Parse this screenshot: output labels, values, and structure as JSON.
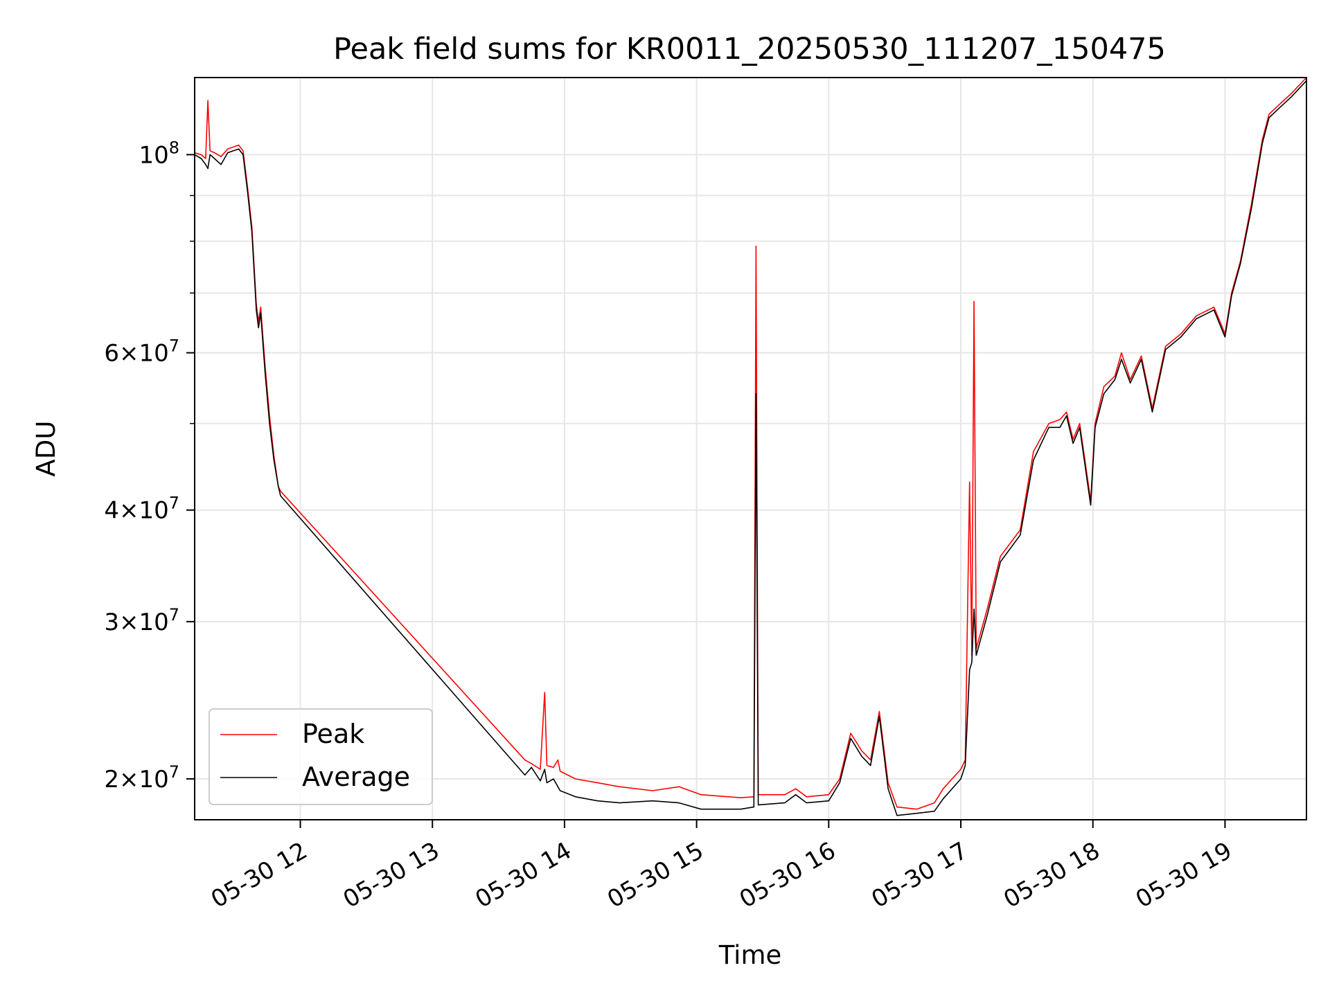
{
  "chart_data": {
    "type": "line",
    "title": "Peak field sums for KR0011_20250530_111207_150475",
    "xlabel": "Time",
    "ylabel": "ADU",
    "y_scale": "log",
    "xlim": [
      "2025-05-30 11:12",
      "2025-05-30 19:37"
    ],
    "ylim": [
      18000000,
      122000000
    ],
    "grid": true,
    "legend_position": "lower-left",
    "x_ticks": [
      "05-30 12",
      "05-30 13",
      "05-30 14",
      "05-30 15",
      "05-30 16",
      "05-30 17",
      "05-30 18",
      "05-30 19"
    ],
    "y_ticks": [
      {
        "value": 20000000,
        "mantissa": "2",
        "exponent": "7"
      },
      {
        "value": 30000000,
        "mantissa": "3",
        "exponent": "7"
      },
      {
        "value": 40000000,
        "mantissa": "4",
        "exponent": "7"
      },
      {
        "value": 60000000,
        "mantissa": "6",
        "exponent": "7"
      },
      {
        "value": 100000000,
        "mantissa": "",
        "exponent": "8"
      }
    ],
    "y_minor_ticks": [
      50000000,
      70000000,
      80000000,
      90000000
    ],
    "series": [
      {
        "name": "Peak",
        "color": "#ff0000",
        "points": [
          [
            "2025-05-30 11:12",
            100500000
          ],
          [
            "2025-05-30 11:15",
            100000000
          ],
          [
            "2025-05-30 11:17",
            99000000
          ],
          [
            "2025-05-30 11:18",
            115000000
          ],
          [
            "2025-05-30 11:19",
            101000000
          ],
          [
            "2025-05-30 11:21",
            100500000
          ],
          [
            "2025-05-30 11:24",
            99500000
          ],
          [
            "2025-05-30 11:27",
            101500000
          ],
          [
            "2025-05-30 11:32",
            102500000
          ],
          [
            "2025-05-30 11:34",
            101000000
          ],
          [
            "2025-05-30 11:36",
            92000000
          ],
          [
            "2025-05-30 11:38",
            83000000
          ],
          [
            "2025-05-30 11:40",
            68000000
          ],
          [
            "2025-05-30 11:41",
            65000000
          ],
          [
            "2025-05-30 11:42",
            67500000
          ],
          [
            "2025-05-30 11:44",
            58000000
          ],
          [
            "2025-05-30 11:46",
            51000000
          ],
          [
            "2025-05-30 11:48",
            46000000
          ],
          [
            "2025-05-30 11:50",
            42500000
          ],
          [
            "2025-05-30 11:51",
            42000000
          ],
          [
            "2025-05-30 13:42",
            21000000
          ],
          [
            "2025-05-30 13:45",
            20800000
          ],
          [
            "2025-05-30 13:49",
            20500000
          ],
          [
            "2025-05-30 13:51",
            25000000
          ],
          [
            "2025-05-30 13:52",
            20700000
          ],
          [
            "2025-05-30 13:55",
            20600000
          ],
          [
            "2025-05-30 13:57",
            21000000
          ],
          [
            "2025-05-30 13:58",
            20400000
          ],
          [
            "2025-05-30 14:05",
            20000000
          ],
          [
            "2025-05-30 14:15",
            19800000
          ],
          [
            "2025-05-30 14:25",
            19600000
          ],
          [
            "2025-05-30 14:40",
            19400000
          ],
          [
            "2025-05-30 14:52",
            19600000
          ],
          [
            "2025-05-30 15:02",
            19200000
          ],
          [
            "2025-05-30 15:20",
            19050000
          ],
          [
            "2025-05-30 15:26",
            19100000
          ],
          [
            "2025-05-30 15:27",
            79000000
          ],
          [
            "2025-05-30 15:28",
            19200000
          ],
          [
            "2025-05-30 15:40",
            19200000
          ],
          [
            "2025-05-30 15:45",
            19500000
          ],
          [
            "2025-05-30 15:50",
            19100000
          ],
          [
            "2025-05-30 16:00",
            19200000
          ],
          [
            "2025-05-30 16:05",
            20000000
          ],
          [
            "2025-05-30 16:10",
            22500000
          ],
          [
            "2025-05-30 16:15",
            21500000
          ],
          [
            "2025-05-30 16:19",
            21000000
          ],
          [
            "2025-05-30 16:23",
            23800000
          ],
          [
            "2025-05-30 16:27",
            19800000
          ],
          [
            "2025-05-30 16:31",
            18600000
          ],
          [
            "2025-05-30 16:40",
            18500000
          ],
          [
            "2025-05-30 16:48",
            18800000
          ],
          [
            "2025-05-30 16:52",
            19500000
          ],
          [
            "2025-05-30 17:00",
            20500000
          ],
          [
            "2025-05-30 17:02",
            21000000
          ],
          [
            "2025-05-30 17:04",
            43000000
          ],
          [
            "2025-05-30 17:05",
            27500000
          ],
          [
            "2025-05-30 17:06",
            68500000
          ],
          [
            "2025-05-30 17:07",
            28000000
          ],
          [
            "2025-05-30 17:12",
            31000000
          ],
          [
            "2025-05-30 17:18",
            35500000
          ],
          [
            "2025-05-30 17:27",
            38000000
          ],
          [
            "2025-05-30 17:33",
            46500000
          ],
          [
            "2025-05-30 17:40",
            50000000
          ],
          [
            "2025-05-30 17:45",
            50500000
          ],
          [
            "2025-05-30 17:48",
            51500000
          ],
          [
            "2025-05-30 17:51",
            48000000
          ],
          [
            "2025-05-30 17:54",
            50000000
          ],
          [
            "2025-05-30 17:59",
            41000000
          ],
          [
            "2025-05-30 18:01",
            50000000
          ],
          [
            "2025-05-30 18:05",
            55000000
          ],
          [
            "2025-05-30 18:10",
            56500000
          ],
          [
            "2025-05-30 18:13",
            60000000
          ],
          [
            "2025-05-30 18:17",
            56000000
          ],
          [
            "2025-05-30 18:22",
            59500000
          ],
          [
            "2025-05-30 18:27",
            52000000
          ],
          [
            "2025-05-30 18:33",
            61000000
          ],
          [
            "2025-05-30 18:40",
            63000000
          ],
          [
            "2025-05-30 18:47",
            66000000
          ],
          [
            "2025-05-30 18:55",
            67500000
          ],
          [
            "2025-05-30 19:00",
            63000000
          ],
          [
            "2025-05-30 19:03",
            70000000
          ],
          [
            "2025-05-30 19:07",
            76000000
          ],
          [
            "2025-05-30 19:12",
            88000000
          ],
          [
            "2025-05-30 19:17",
            104000000
          ],
          [
            "2025-05-30 19:20",
            111000000
          ],
          [
            "2025-05-30 19:25",
            114000000
          ],
          [
            "2025-05-30 19:30",
            117000000
          ],
          [
            "2025-05-30 19:37",
            122000000
          ]
        ]
      },
      {
        "name": "Average",
        "color": "#000000",
        "points": [
          [
            "2025-05-30 11:12",
            100000000
          ],
          [
            "2025-05-30 11:15",
            99000000
          ],
          [
            "2025-05-30 11:17",
            97500000
          ],
          [
            "2025-05-30 11:18",
            96500000
          ],
          [
            "2025-05-30 11:19",
            100000000
          ],
          [
            "2025-05-30 11:21",
            99000000
          ],
          [
            "2025-05-30 11:24",
            97500000
          ],
          [
            "2025-05-30 11:27",
            100500000
          ],
          [
            "2025-05-30 11:32",
            101500000
          ],
          [
            "2025-05-30 11:34",
            100000000
          ],
          [
            "2025-05-30 11:36",
            91000000
          ],
          [
            "2025-05-30 11:38",
            82000000
          ],
          [
            "2025-05-30 11:40",
            67000000
          ],
          [
            "2025-05-30 11:41",
            64000000
          ],
          [
            "2025-05-30 11:42",
            66500000
          ],
          [
            "2025-05-30 11:44",
            57000000
          ],
          [
            "2025-05-30 11:46",
            50000000
          ],
          [
            "2025-05-30 11:48",
            45500000
          ],
          [
            "2025-05-30 11:50",
            42500000
          ],
          [
            "2025-05-30 11:51",
            41500000
          ],
          [
            "2025-05-30 13:42",
            20200000
          ],
          [
            "2025-05-30 13:45",
            20600000
          ],
          [
            "2025-05-30 13:49",
            19900000
          ],
          [
            "2025-05-30 13:51",
            20500000
          ],
          [
            "2025-05-30 13:52",
            19800000
          ],
          [
            "2025-05-30 13:55",
            20000000
          ],
          [
            "2025-05-30 13:57",
            19600000
          ],
          [
            "2025-05-30 13:58",
            19400000
          ],
          [
            "2025-05-30 14:05",
            19100000
          ],
          [
            "2025-05-30 14:15",
            18900000
          ],
          [
            "2025-05-30 14:25",
            18800000
          ],
          [
            "2025-05-30 14:40",
            18900000
          ],
          [
            "2025-05-30 14:52",
            18800000
          ],
          [
            "2025-05-30 15:02",
            18500000
          ],
          [
            "2025-05-30 15:20",
            18500000
          ],
          [
            "2025-05-30 15:26",
            18600000
          ],
          [
            "2025-05-30 15:27",
            54000000
          ],
          [
            "2025-05-30 15:28",
            18700000
          ],
          [
            "2025-05-30 15:40",
            18800000
          ],
          [
            "2025-05-30 15:45",
            19200000
          ],
          [
            "2025-05-30 15:50",
            18800000
          ],
          [
            "2025-05-30 16:00",
            18900000
          ],
          [
            "2025-05-30 16:05",
            19800000
          ],
          [
            "2025-05-30 16:10",
            22200000
          ],
          [
            "2025-05-30 16:15",
            21200000
          ],
          [
            "2025-05-30 16:19",
            20700000
          ],
          [
            "2025-05-30 16:23",
            23500000
          ],
          [
            "2025-05-30 16:27",
            19500000
          ],
          [
            "2025-05-30 16:31",
            18200000
          ],
          [
            "2025-05-30 16:40",
            18300000
          ],
          [
            "2025-05-30 16:48",
            18400000
          ],
          [
            "2025-05-30 16:52",
            19000000
          ],
          [
            "2025-05-30 17:00",
            20000000
          ],
          [
            "2025-05-30 17:02",
            20700000
          ],
          [
            "2025-05-30 17:04",
            26500000
          ],
          [
            "2025-05-30 17:05",
            27000000
          ],
          [
            "2025-05-30 17:06",
            31000000
          ],
          [
            "2025-05-30 17:07",
            27500000
          ],
          [
            "2025-05-30 17:12",
            30500000
          ],
          [
            "2025-05-30 17:18",
            35000000
          ],
          [
            "2025-05-30 17:27",
            37500000
          ],
          [
            "2025-05-30 17:33",
            45500000
          ],
          [
            "2025-05-30 17:40",
            49500000
          ],
          [
            "2025-05-30 17:45",
            49500000
          ],
          [
            "2025-05-30 17:48",
            51000000
          ],
          [
            "2025-05-30 17:51",
            47500000
          ],
          [
            "2025-05-30 17:54",
            49500000
          ],
          [
            "2025-05-30 17:59",
            40500000
          ],
          [
            "2025-05-30 18:01",
            49500000
          ],
          [
            "2025-05-30 18:05",
            54000000
          ],
          [
            "2025-05-30 18:10",
            56000000
          ],
          [
            "2025-05-30 18:13",
            59000000
          ],
          [
            "2025-05-30 18:17",
            55500000
          ],
          [
            "2025-05-30 18:22",
            59000000
          ],
          [
            "2025-05-30 18:27",
            51500000
          ],
          [
            "2025-05-30 18:33",
            60500000
          ],
          [
            "2025-05-30 18:40",
            62500000
          ],
          [
            "2025-05-30 18:47",
            65500000
          ],
          [
            "2025-05-30 18:55",
            67000000
          ],
          [
            "2025-05-30 19:00",
            62500000
          ],
          [
            "2025-05-30 19:03",
            69500000
          ],
          [
            "2025-05-30 19:07",
            75500000
          ],
          [
            "2025-05-30 19:12",
            87000000
          ],
          [
            "2025-05-30 19:17",
            103000000
          ],
          [
            "2025-05-30 19:20",
            110000000
          ],
          [
            "2025-05-30 19:25",
            113000000
          ],
          [
            "2025-05-30 19:30",
            116000000
          ],
          [
            "2025-05-30 19:37",
            121000000
          ]
        ]
      }
    ]
  }
}
